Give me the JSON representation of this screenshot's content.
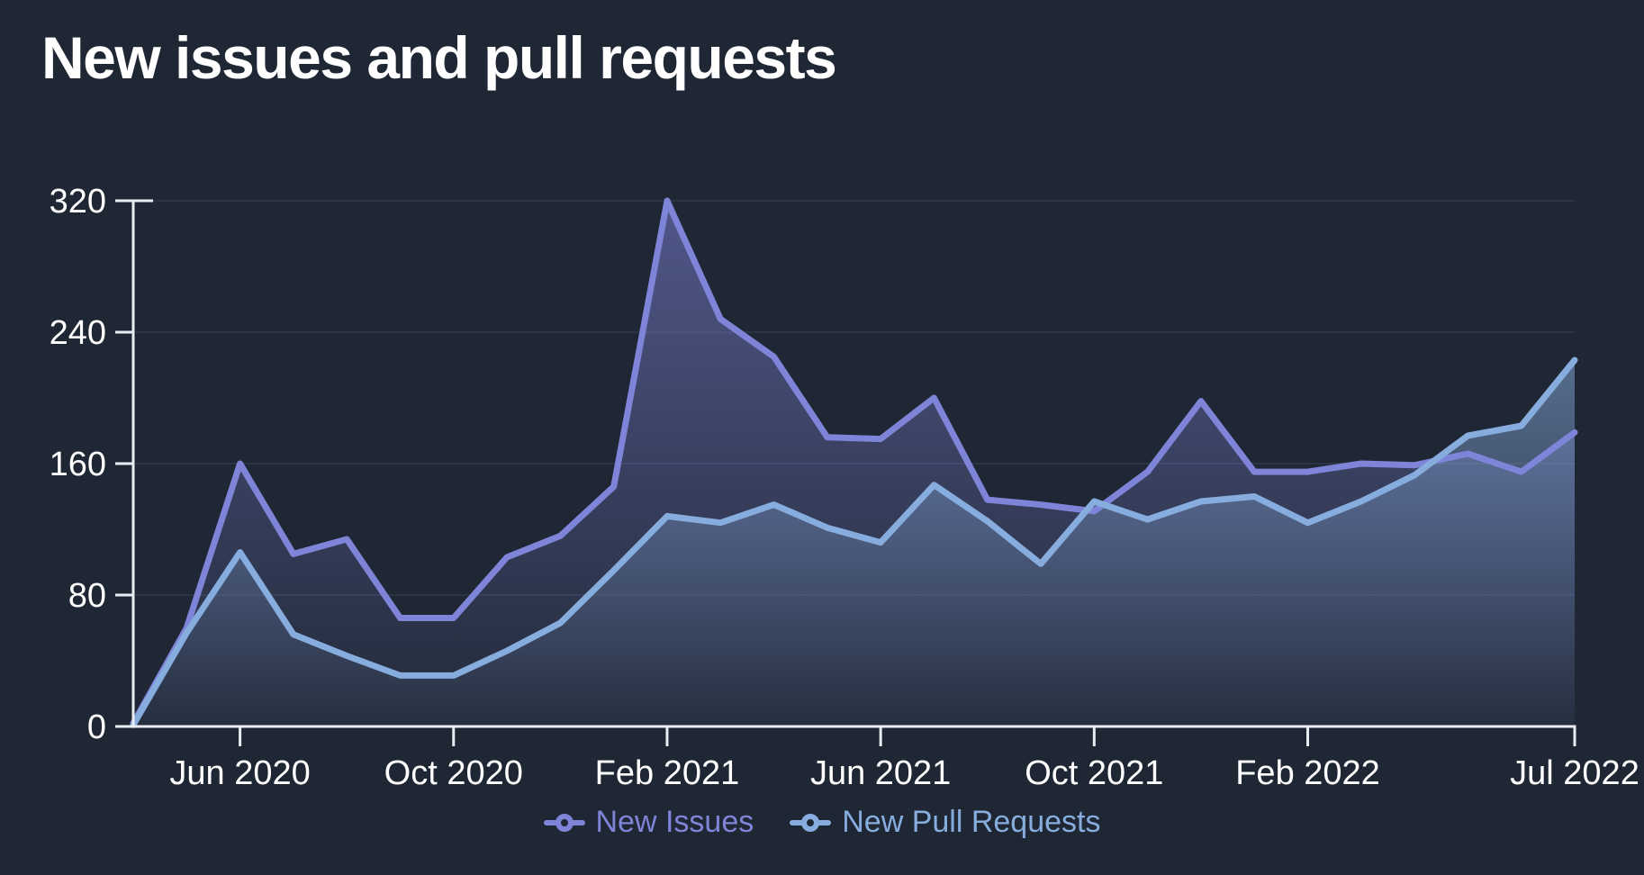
{
  "page": {
    "background_color": "#1F2734",
    "text_color": "#FFFFFF",
    "axis_color": "#E9ECF0",
    "gridline_color": "#2B3445"
  },
  "chart_data": {
    "type": "area",
    "title": "New issues and pull requests",
    "x": [
      "Apr 2020",
      "May 2020",
      "Jun 2020",
      "Jul 2020",
      "Aug 2020",
      "Sep 2020",
      "Oct 2020",
      "Nov 2020",
      "Dec 2020",
      "Jan 2021",
      "Feb 2021",
      "Mar 2021",
      "Apr 2021",
      "May 2021",
      "Jun 2021",
      "Jul 2021",
      "Aug 2021",
      "Sep 2021",
      "Oct 2021",
      "Nov 2021",
      "Dec 2021",
      "Jan 2022",
      "Feb 2022",
      "Mar 2022",
      "Apr 2022",
      "May 2022",
      "Jun 2022",
      "Jul 2022"
    ],
    "series": [
      {
        "name": "New Issues",
        "color": "#7E84D8",
        "fill_top": "rgba(126,132,216,0.52)",
        "fill_bottom": "rgba(126,132,216,0.03)",
        "values": [
          2,
          60,
          160,
          105,
          114,
          66,
          66,
          103,
          116,
          146,
          320,
          248,
          225,
          176,
          175,
          200,
          138,
          135,
          131,
          155,
          198,
          155,
          155,
          160,
          159,
          166,
          155,
          179
        ]
      },
      {
        "name": "New Pull Requests",
        "color": "#87ACDE",
        "fill_top": "rgba(135,172,222,0.52)",
        "fill_bottom": "rgba(135,172,222,0.03)",
        "values": [
          1,
          57,
          106,
          56,
          43,
          31,
          31,
          46,
          63,
          95,
          128,
          124,
          135,
          121,
          112,
          147,
          125,
          99,
          137,
          126,
          137,
          140,
          124,
          137,
          153,
          177,
          183,
          223
        ]
      }
    ],
    "ylim": [
      0,
      320
    ],
    "y_ticks": [
      0,
      80,
      160,
      240,
      320
    ],
    "x_tick_labels": [
      "Jun 2020",
      "Oct 2020",
      "Feb 2021",
      "Jun 2021",
      "Oct 2021",
      "Feb 2022",
      "Jul 2022"
    ],
    "x_tick_indices": [
      2,
      6,
      10,
      14,
      18,
      22,
      27
    ],
    "grid": true,
    "legend_position": "bottom"
  }
}
